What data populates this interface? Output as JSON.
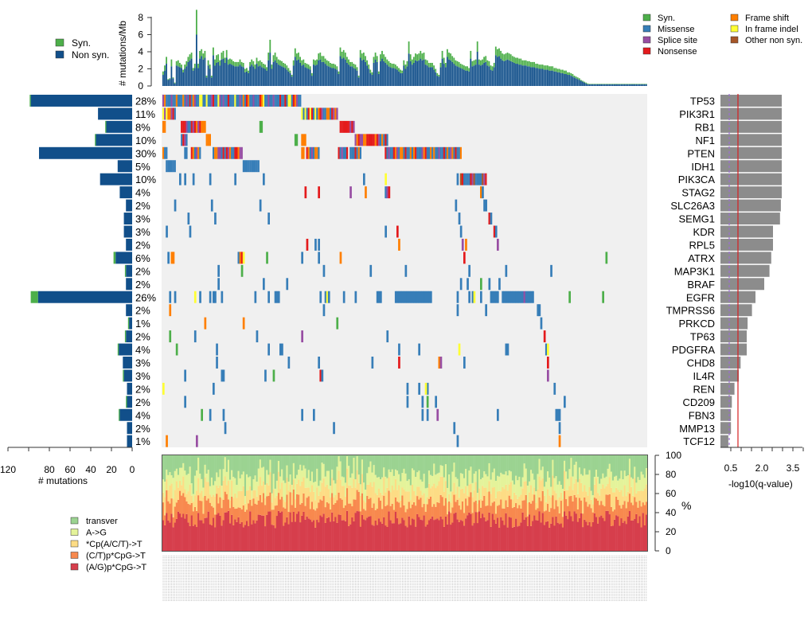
{
  "legends": {
    "burden": [
      {
        "label": "Syn.",
        "color": "#4daf4a"
      },
      {
        "label": "Non syn.",
        "color": "#114f8a"
      }
    ],
    "mutation_types": [
      {
        "label": "Syn.",
        "color": "#4daf4a"
      },
      {
        "label": "Missense",
        "color": "#377eb8"
      },
      {
        "label": "Splice site",
        "color": "#984ea3"
      },
      {
        "label": "Nonsense",
        "color": "#e41a1c"
      },
      {
        "label": "Frame shift",
        "color": "#ff7f00"
      },
      {
        "label": "In frame indel",
        "color": "#ffff33"
      },
      {
        "label": "Other non syn.",
        "color": "#a65628"
      }
    ],
    "spectrum": [
      {
        "label": "transver",
        "color": "#9bd391"
      },
      {
        "label": "A->G",
        "color": "#e4f39a"
      },
      {
        "label": "*Cp(A/C/T)->T",
        "color": "#fddc85"
      },
      {
        "label": "(C/T)p*CpG->T",
        "color": "#f8894e"
      },
      {
        "label": "(A/G)p*CpG->T",
        "color": "#d63e4c"
      }
    ]
  },
  "chart_data": [
    {
      "name": "mutation-burden",
      "type": "bar",
      "ylabel": "# mutations/Mb",
      "yticks": [
        0,
        2,
        4,
        6,
        8
      ],
      "ylim": [
        0,
        8.5
      ],
      "n_samples": 290,
      "series": [
        {
          "name": "Non syn.",
          "profile": [
            1.3,
            1.8,
            2.6,
            0.7,
            0.8,
            2.3,
            0.9,
            0.3,
            2.4,
            2.3,
            2.2,
            2.1,
            1.6,
            2.0,
            2.3,
            2.8,
            3.0,
            3.2,
            1.8,
            2.1,
            6.0,
            2.1,
            3.2,
            3.5,
            3.1,
            3.3,
            1.0,
            2.4,
            2.0,
            1.0,
            3.6,
            2.4,
            2.7,
            2.8,
            2.4,
            3.1,
            3.2,
            2.7,
            3.3,
            2.5,
            2.6,
            2.5,
            2.4,
            2.3,
            2.3,
            2.3,
            2.5,
            2.3,
            2.2,
            1.6,
            1.7,
            1.5,
            2.3,
            2.5,
            2.3,
            2.0,
            2.6,
            2.3,
            2.4,
            2.2,
            2.1,
            2.0,
            1.8,
            3.0,
            3.9,
            2.0,
            2.8,
            3.0,
            2.7,
            2.5,
            2.4,
            2.3,
            2.2,
            2.1,
            1.9,
            1.7,
            1.5,
            1.1,
            2.4,
            3.4,
            3.0,
            3.1,
            2.7,
            2.4,
            2.5,
            2.2,
            2.1,
            2.0,
            1.9,
            1.2,
            2.5,
            2.4,
            2.5,
            3.0,
            3.1,
            2.8,
            2.8,
            2.6,
            2.4,
            2.3,
            2.2,
            2.1,
            2.1,
            2.0,
            1.9,
            1.4,
            3.5,
            3.2,
            3.3,
            3.1,
            2.7,
            2.5,
            2.3,
            2.3,
            2.1,
            2.0,
            1.8,
            1.0,
            3.3,
            3.0,
            3.1,
            2.8,
            2.4,
            2.0,
            1.5,
            1.3,
            2.7,
            3.1,
            2.8,
            1.4,
            2.9,
            3.2,
            2.9,
            2.7,
            2.5,
            2.3,
            2.2,
            2.1,
            2.1,
            2.0,
            1.9,
            1.7,
            1.5,
            1.5,
            2.4,
            2.0,
            2.3,
            3.8,
            2.9,
            2.5,
            2.7,
            3.0,
            2.9,
            3.0,
            3.2,
            3.0,
            3.1,
            2.5,
            2.4,
            2.2,
            2.2,
            2.2,
            1.9,
            1.6,
            1.2,
            1.1,
            2.2,
            3.2,
            2.6,
            2.2,
            3.4,
            3.1,
            3.0,
            2.8,
            2.6,
            2.4,
            2.3,
            2.2,
            2.1,
            2.0,
            1.9,
            1.8,
            1.8,
            1.7,
            3.2,
            2.3,
            2.4,
            2.5,
            4.0,
            2.5,
            2.4,
            2.5,
            2.7,
            2.8,
            2.4,
            2.3,
            1.9,
            1.8,
            2.2,
            3.6,
            3.4,
            3.5,
            3.2,
            3.0,
            2.9,
            3.0,
            3.1,
            3.0,
            2.9,
            2.8,
            2.7,
            2.6,
            2.6,
            2.5,
            2.5,
            2.4,
            2.4,
            2.4,
            2.3,
            2.3,
            2.2,
            2.2,
            2.2,
            2.1,
            2.1,
            2.0,
            2.0,
            2.0,
            1.9,
            1.9,
            1.9,
            1.8,
            1.8,
            1.8,
            1.7,
            1.7,
            1.6,
            1.6,
            1.5,
            1.5,
            1.4,
            1.4,
            1.3,
            1.3,
            1.2,
            1.1,
            1.0,
            0.9,
            0.8,
            0.7,
            0.6,
            0.5,
            0.4,
            0.3,
            0.2
          ]
        },
        {
          "name": "Syn.",
          "profile": [
            0.4,
            0.6,
            0.8,
            0.1,
            0.1,
            0.8,
            0.1,
            0.1,
            0.5,
            0.7,
            0.5,
            0.4,
            0.3,
            0.5,
            0.6,
            0.6,
            0.7,
            0.7,
            0.3,
            0.5,
            2.9,
            0.5,
            0.9,
            0.8,
            0.7,
            0.8,
            0.2,
            0.6,
            0.5,
            0.2,
            0.9,
            0.7,
            0.9,
            0.9,
            0.6,
            0.8,
            0.9,
            0.6,
            0.9,
            0.6,
            0.6,
            0.6,
            0.5,
            0.5,
            0.5,
            0.5,
            0.6,
            0.5,
            0.5,
            0.4,
            0.4,
            0.3,
            0.5,
            0.6,
            0.6,
            0.5,
            0.7,
            0.6,
            0.6,
            0.6,
            0.5,
            0.5,
            0.4,
            0.9,
            1.5,
            0.5,
            0.8,
            0.9,
            0.7,
            0.6,
            0.6,
            0.6,
            0.5,
            0.5,
            0.5,
            0.4,
            0.3,
            0.2,
            0.6,
            1.0,
            0.8,
            0.8,
            0.7,
            0.6,
            0.6,
            0.5,
            0.5,
            0.5,
            0.4,
            0.3,
            0.6,
            0.6,
            0.6,
            0.8,
            0.8,
            0.7,
            0.7,
            0.6,
            0.6,
            0.6,
            0.5,
            0.5,
            0.5,
            0.5,
            0.4,
            0.3,
            1.0,
            0.8,
            0.9,
            0.8,
            0.7,
            0.6,
            0.5,
            0.5,
            0.5,
            0.5,
            0.4,
            0.2,
            0.9,
            0.8,
            0.8,
            0.7,
            0.6,
            0.5,
            0.4,
            0.3,
            0.7,
            0.8,
            0.7,
            0.3,
            0.8,
            0.9,
            0.8,
            0.7,
            0.6,
            0.6,
            0.5,
            0.5,
            0.5,
            0.5,
            0.4,
            0.4,
            0.4,
            0.3,
            0.6,
            0.5,
            0.6,
            1.4,
            0.8,
            0.6,
            0.7,
            0.8,
            0.8,
            0.8,
            0.9,
            0.8,
            0.8,
            0.6,
            0.6,
            0.5,
            0.5,
            0.5,
            0.5,
            0.4,
            0.3,
            0.2,
            0.5,
            0.9,
            0.7,
            0.5,
            0.9,
            0.8,
            0.8,
            0.7,
            0.7,
            0.6,
            0.6,
            0.6,
            0.5,
            0.5,
            0.5,
            0.5,
            0.5,
            0.4,
            0.9,
            0.6,
            0.6,
            0.6,
            1.2,
            0.6,
            0.6,
            0.6,
            0.7,
            0.7,
            0.6,
            0.6,
            0.5,
            0.5,
            0.5,
            1.0,
            0.9,
            0.9,
            0.9,
            0.8,
            0.8,
            0.8,
            0.8,
            0.8,
            0.8,
            0.7,
            0.7,
            0.7,
            0.7,
            0.7,
            0.7,
            0.6,
            0.6,
            0.6,
            0.6,
            0.6,
            0.6,
            0.6,
            0.6,
            0.5,
            0.5,
            0.5,
            0.5,
            0.5,
            0.5,
            0.5,
            0.5,
            0.5,
            0.5,
            0.5,
            0.4,
            0.4,
            0.4,
            0.4,
            0.4,
            0.4,
            0.4,
            0.4,
            0.3,
            0.3,
            0.3,
            0.3,
            0.2,
            0.2,
            0.2,
            0.2,
            0.1,
            0.1,
            0.1,
            0.1,
            0.1
          ]
        }
      ]
    },
    {
      "name": "oncoprint",
      "type": "heatmap",
      "genes": [
        {
          "gene": "TP53",
          "pct": "28%",
          "nonsyn": 98,
          "syn": 1,
          "neglog10q": 3.5
        },
        {
          "gene": "PIK3R1",
          "pct": "11%",
          "nonsyn": 33,
          "syn": 0,
          "neglog10q": 3.5
        },
        {
          "gene": "RB1",
          "pct": "8%",
          "nonsyn": 25,
          "syn": 1,
          "neglog10q": 3.5
        },
        {
          "gene": "NF1",
          "pct": "10%",
          "nonsyn": 35,
          "syn": 1,
          "neglog10q": 3.5
        },
        {
          "gene": "PTEN",
          "pct": "30%",
          "nonsyn": 90,
          "syn": 0,
          "neglog10q": 3.5
        },
        {
          "gene": "IDH1",
          "pct": "5%",
          "nonsyn": 14,
          "syn": 0,
          "neglog10q": 3.5
        },
        {
          "gene": "PIK3CA",
          "pct": "10%",
          "nonsyn": 31,
          "syn": 0,
          "neglog10q": 3.5
        },
        {
          "gene": "STAG2",
          "pct": "4%",
          "nonsyn": 12,
          "syn": 0,
          "neglog10q": 3.5
        },
        {
          "gene": "SLC26A3",
          "pct": "2%",
          "nonsyn": 6,
          "syn": 0,
          "neglog10q": 3.45
        },
        {
          "gene": "SEMG1",
          "pct": "3%",
          "nonsyn": 8,
          "syn": 0,
          "neglog10q": 3.4
        },
        {
          "gene": "KDR",
          "pct": "3%",
          "nonsyn": 8,
          "syn": 0,
          "neglog10q": 3.0
        },
        {
          "gene": "RPL5",
          "pct": "2%",
          "nonsyn": 6,
          "syn": 0,
          "neglog10q": 3.0
        },
        {
          "gene": "ATRX",
          "pct": "6%",
          "nonsyn": 16,
          "syn": 2,
          "neglog10q": 2.9
        },
        {
          "gene": "MAP3K1",
          "pct": "2%",
          "nonsyn": 6,
          "syn": 1,
          "neglog10q": 2.8
        },
        {
          "gene": "BRAF",
          "pct": "2%",
          "nonsyn": 6,
          "syn": 0,
          "neglog10q": 2.5
        },
        {
          "gene": "EGFR",
          "pct": "26%",
          "nonsyn": 91,
          "syn": 7,
          "neglog10q": 2.0
        },
        {
          "gene": "TMPRSS6",
          "pct": "2%",
          "nonsyn": 6,
          "syn": 0,
          "neglog10q": 1.8
        },
        {
          "gene": "PRKCD",
          "pct": "1%",
          "nonsyn": 3,
          "syn": 1,
          "neglog10q": 1.55
        },
        {
          "gene": "TP63",
          "pct": "2%",
          "nonsyn": 6,
          "syn": 1,
          "neglog10q": 1.5
        },
        {
          "gene": "PDGFRA",
          "pct": "4%",
          "nonsyn": 13,
          "syn": 1,
          "neglog10q": 1.5
        },
        {
          "gene": "CHD8",
          "pct": "3%",
          "nonsyn": 9,
          "syn": 0,
          "neglog10q": 1.15
        },
        {
          "gene": "IL4R",
          "pct": "3%",
          "nonsyn": 8,
          "syn": 1,
          "neglog10q": 1.05
        },
        {
          "gene": "REN",
          "pct": "2%",
          "nonsyn": 5,
          "syn": 0,
          "neglog10q": 0.8
        },
        {
          "gene": "CD209",
          "pct": "2%",
          "nonsyn": 5,
          "syn": 1,
          "neglog10q": 0.65
        },
        {
          "gene": "FBN3",
          "pct": "4%",
          "nonsyn": 12,
          "syn": 1,
          "neglog10q": 0.6
        },
        {
          "gene": "MMP13",
          "pct": "2%",
          "nonsyn": 5,
          "syn": 0,
          "neglog10q": 0.6
        },
        {
          "gene": "TCF12",
          "pct": "1%",
          "nonsyn": 5,
          "syn": 0,
          "neglog10q": 0.45
        }
      ],
      "mutation_blocks": [
        {
          "row": 0,
          "from": 0,
          "to": 82,
          "type": "mixed-tp53"
        },
        {
          "row": 1,
          "from": 0,
          "to": 7,
          "type": "mixed-pik3r1"
        },
        {
          "row": 1,
          "from": 83,
          "to": 104,
          "type": "mixed-pik3r1"
        },
        {
          "row": 2,
          "from": 0,
          "to": 1,
          "type": "Frame shift"
        },
        {
          "row": 2,
          "from": 11,
          "to": 25,
          "type": "mixed-rb1"
        },
        {
          "row": 2,
          "from": 58,
          "to": 59,
          "type": "Syn."
        },
        {
          "row": 2,
          "from": 106,
          "to": 114,
          "type": "mixed-rb1"
        },
        {
          "row": 3,
          "from": 11,
          "to": 14,
          "type": "mixed-nf1"
        },
        {
          "row": 3,
          "from": 26,
          "to": 28,
          "type": "Frame shift"
        },
        {
          "row": 3,
          "from": 79,
          "to": 80,
          "type": "Syn."
        },
        {
          "row": 3,
          "from": 83,
          "to": 85,
          "type": "Frame shift"
        },
        {
          "row": 3,
          "from": 115,
          "to": 134,
          "type": "mixed-nf1"
        },
        {
          "row": 4,
          "from": 0,
          "to": 2,
          "type": "mixed-pten"
        },
        {
          "row": 4,
          "from": 13,
          "to": 14,
          "type": "Missense"
        },
        {
          "row": 4,
          "from": 17,
          "to": 22,
          "type": "mixed-pten"
        },
        {
          "row": 4,
          "from": 30,
          "to": 47,
          "type": "mixed-pten"
        },
        {
          "row": 4,
          "from": 83,
          "to": 84,
          "type": "Frame shift"
        },
        {
          "row": 4,
          "from": 86,
          "to": 93,
          "type": "mixed-pten"
        },
        {
          "row": 4,
          "from": 105,
          "to": 110,
          "type": "mixed-pten"
        },
        {
          "row": 4,
          "from": 112,
          "to": 118,
          "type": "mixed-pten"
        },
        {
          "row": 4,
          "from": 133,
          "to": 178,
          "type": "mixed-pten"
        },
        {
          "row": 5,
          "from": 2,
          "to": 7,
          "type": "Missense"
        },
        {
          "row": 5,
          "from": 48,
          "to": 57,
          "type": "Missense"
        },
        {
          "row": 6,
          "from": 178,
          "to": 193,
          "type": "mixed-pik3ca"
        }
      ],
      "row_samples_note": "remaining rows contain scattered single-sample mutations",
      "colors": {
        "background": "#f0f0f0"
      }
    },
    {
      "name": "qvalue",
      "type": "bar",
      "xlabel": "-log10(q-value)",
      "xticks": [
        "0.5",
        "2.0",
        "3.5"
      ],
      "xlim": [
        0,
        3.5
      ],
      "threshold_dashed": 0.5,
      "threshold_solid": 1.0
    },
    {
      "name": "mutation-spectrum",
      "type": "area",
      "ylabel": "%",
      "yticks": [
        0,
        20,
        40,
        60,
        80,
        100
      ],
      "ylim": [
        0,
        100
      ],
      "categories": [
        "(A/G)p*CpG->T",
        "(C/T)p*CpG->T",
        "*Cp(A/C/T)->T",
        "A->G",
        "transver"
      ],
      "mean_cumulative_pct": [
        33,
        50,
        65,
        80,
        100
      ]
    }
  ],
  "axes": {
    "left_xlabel": "# mutations",
    "left_xticks": [
      "120",
      "80",
      "60",
      "40",
      "20",
      "0"
    ]
  }
}
